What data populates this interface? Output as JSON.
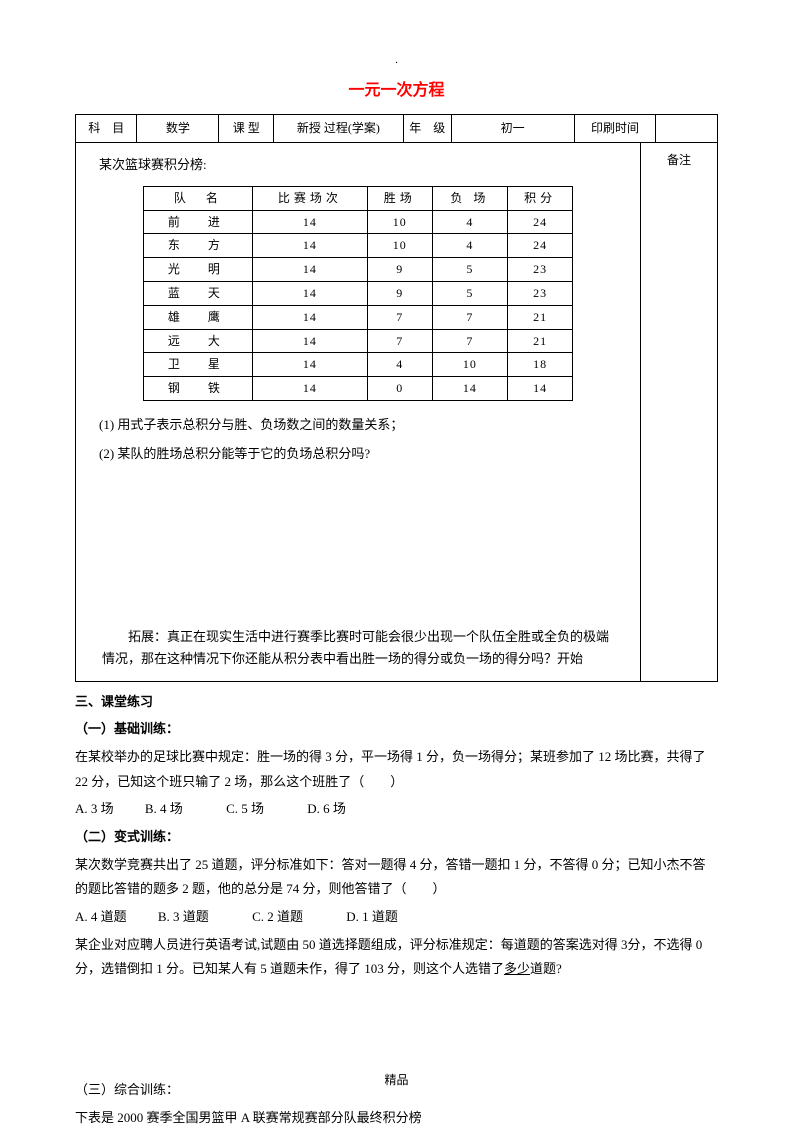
{
  "top_mark": ".",
  "title": "一元一次方程",
  "header": {
    "subject_label": "科　目",
    "subject_value": "数学",
    "type_label": "课 型",
    "type_value": "新授 过程(学案)",
    "grade_label": "年　级",
    "grade_value": "初一",
    "print_label": "印刷时间",
    "print_value": ""
  },
  "aside_note": "备注",
  "content": {
    "intro": "某次篮球赛积分榜:",
    "score_table": {
      "columns": [
        "队　名",
        "比赛场次",
        "胜场",
        "负 场",
        "积分"
      ],
      "rows": [
        [
          "前　进",
          "14",
          "10",
          "4",
          "24"
        ],
        [
          "东　方",
          "14",
          "10",
          "4",
          "24"
        ],
        [
          "光　明",
          "14",
          "9",
          "5",
          "23"
        ],
        [
          "蓝　天",
          "14",
          "9",
          "5",
          "23"
        ],
        [
          "雄　鹰",
          "14",
          "7",
          "7",
          "21"
        ],
        [
          "远　大",
          "14",
          "7",
          "7",
          "21"
        ],
        [
          "卫　星",
          "14",
          "4",
          "10",
          "18"
        ],
        [
          "钢　铁",
          "14",
          "0",
          "14",
          "14"
        ]
      ]
    },
    "q1": "(1) 用式子表示总积分与胜、负场数之间的数量关系；",
    "q2": "(2) 某队的胜场总积分能等于它的负场总积分吗?",
    "extend": "拓展：真正在现实生活中进行赛季比赛时可能会很少出现一个队伍全胜或全负的极端情况，那在这种情况下你还能从积分表中看出胜一场的得分或负一场的得分吗？开始"
  },
  "exercises": {
    "h3": "三、课堂练习",
    "s1_h": "（一）基础训练：",
    "s1_q": "在某校举办的足球比赛中规定：胜一场的得 3 分，平一场得 1 分，负一场得分；某班参加了 12 场比赛，共得了 22 分，已知这个班只输了 2 场，那么这个班胜了（　　）",
    "s1_opts": {
      "a": "A. 3 场",
      "b": "B. 4 场",
      "c": "C. 5 场",
      "d": "D. 6 场"
    },
    "s2_h": "（二）变式训练：",
    "s2_q1": "某次数学竞赛共出了 25 道题，评分标准如下：答对一题得 4 分，答错一题扣 1 分，不答得 0 分；已知小杰不答的题比答错的题多 2 题，他的总分是 74 分，则他答错了（　　）",
    "s2_opts": {
      "a": "A. 4 道题",
      "b": "B. 3 道题",
      "c": "C. 2 道题",
      "d": "D. 1 道题"
    },
    "s2_q2a": "某企业对应聘人员进行英语考试,试题由 50 道选择题组成，评分标准规定：每道题的答案选对得 3分，不选得 0 分，选错倒扣 1 分。已知某人有 5 道题未作，得了 103 分，则这个人选错了",
    "s2_q2u": "多少",
    "s2_q2b": "道题?",
    "s3_h": "（三）综合训练：",
    "s3_q": "下表是 2000 赛季全国男篮甲 A 联赛常规赛部分队最终积分榜"
  },
  "footer": "精品"
}
